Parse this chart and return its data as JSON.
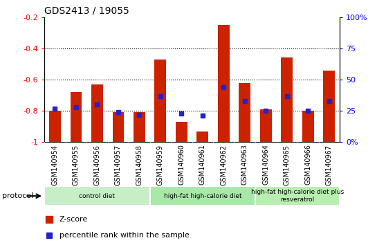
{
  "title": "GDS2413 / 19055",
  "samples": [
    "GSM140954",
    "GSM140955",
    "GSM140956",
    "GSM140957",
    "GSM140958",
    "GSM140959",
    "GSM140960",
    "GSM140961",
    "GSM140962",
    "GSM140963",
    "GSM140964",
    "GSM140965",
    "GSM140966",
    "GSM140967"
  ],
  "zscore": [
    -0.8,
    -0.68,
    -0.63,
    -0.81,
    -0.81,
    -0.47,
    -0.87,
    -0.93,
    -0.25,
    -0.62,
    -0.79,
    -0.46,
    -0.8,
    -0.54
  ],
  "percentile_pct": [
    27,
    28,
    30,
    24,
    22,
    37,
    23,
    21,
    44,
    33,
    25,
    37,
    25,
    33
  ],
  "bar_bottom": -1.0,
  "bar_color": "#cc2200",
  "blue_color": "#2222cc",
  "ylim_left": [
    -1.0,
    -0.2
  ],
  "ylim_right": [
    0,
    100
  ],
  "right_ticks": [
    0,
    25,
    50,
    75,
    100
  ],
  "right_tick_labels": [
    "0%",
    "25",
    "50",
    "75",
    "100%"
  ],
  "left_ticks": [
    -1.0,
    -0.8,
    -0.6,
    -0.4,
    -0.2
  ],
  "left_tick_labels": [
    "-1",
    "-0.8",
    "-0.6",
    "-0.4",
    "-0.2"
  ],
  "gridlines": [
    -0.8,
    -0.6,
    -0.4
  ],
  "protocol_groups": [
    {
      "label": "control diet",
      "start": 0,
      "end": 4,
      "color": "#c8eec8"
    },
    {
      "label": "high-fat high-calorie diet",
      "start": 5,
      "end": 9,
      "color": "#a8e8a8"
    },
    {
      "label": "high-fat high-calorie diet plus\nresveratrol",
      "start": 10,
      "end": 13,
      "color": "#b8eeb0"
    }
  ],
  "protocol_label": "protocol",
  "legend_zscore": "Z-score",
  "legend_percentile": "percentile rank within the sample",
  "xtick_bg": "#cccccc",
  "plot_bg": "#ffffff"
}
